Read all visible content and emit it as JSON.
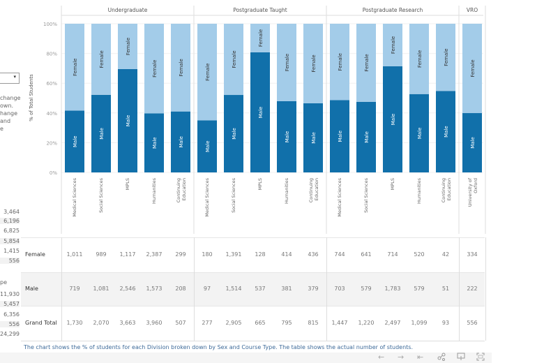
{
  "left_panel": {
    "dropdown_arrow": "▾",
    "text_fragments": [
      "change",
      "own.",
      "hange",
      "and",
      "e"
    ],
    "numbers_top": [
      "3,464",
      "6,196",
      "6,825",
      "5,854",
      "1,415",
      "556"
    ],
    "section_label": "pe",
    "numbers_bottom": [
      "11,930",
      "5,457",
      "6,356",
      "556",
      "24,299"
    ]
  },
  "chart_data": {
    "type": "bar",
    "stacked": true,
    "ylabel": "% of Total Students",
    "ylim": [
      0,
      100
    ],
    "yticks": [
      "0%",
      "20%",
      "40%",
      "60%",
      "80%",
      "100%"
    ],
    "groups": [
      {
        "name": "Undergraduate",
        "categories": [
          "Medical Sciences",
          "Social Sciences",
          "MPLS",
          "Humanities",
          "Continuing Education"
        ]
      },
      {
        "name": "Postgraduate Taught",
        "categories": [
          "Medical Sciences",
          "Social Sciences",
          "MPLS",
          "Humanities",
          "Continuing Education"
        ]
      },
      {
        "name": "Postgraduate Research",
        "categories": [
          "Medical Sciences",
          "Social Sciences",
          "MPLS",
          "Humanities",
          "Continuing Education"
        ]
      },
      {
        "name": "VRO",
        "categories": [
          "University of Oxford"
        ]
      }
    ],
    "series": [
      {
        "name": "Male",
        "color": "#1170aa",
        "label_color": "#ffffff",
        "values": [
          41.6,
          52.2,
          69.5,
          39.7,
          41.0,
          35.0,
          52.1,
          80.8,
          47.9,
          46.5,
          48.6,
          47.5,
          71.4,
          52.7,
          54.8,
          39.9
        ]
      },
      {
        "name": "Female",
        "color": "#a3cce9",
        "label_color": "#333333",
        "values": [
          58.4,
          47.8,
          30.5,
          60.3,
          59.0,
          65.0,
          47.9,
          19.2,
          52.1,
          53.5,
          51.4,
          52.5,
          28.6,
          47.3,
          45.2,
          60.1
        ]
      }
    ]
  },
  "table": {
    "rows": [
      {
        "label": "Female",
        "values": [
          "1,011",
          "989",
          "1,117",
          "2,387",
          "299",
          "180",
          "1,391",
          "128",
          "414",
          "436",
          "744",
          "641",
          "714",
          "520",
          "42",
          "334"
        ]
      },
      {
        "label": "Male",
        "values": [
          "719",
          "1,081",
          "2,546",
          "1,573",
          "208",
          "97",
          "1,514",
          "537",
          "381",
          "379",
          "703",
          "579",
          "1,783",
          "579",
          "51",
          "222"
        ]
      },
      {
        "label": "Grand Total",
        "values": [
          "1,730",
          "2,070",
          "3,663",
          "3,960",
          "507",
          "277",
          "2,905",
          "665",
          "795",
          "815",
          "1,447",
          "1,220",
          "2,497",
          "1,099",
          "93",
          "556"
        ]
      }
    ]
  },
  "caption": "The chart shows the % of students for each Division broken down by Sex and Course Type. The table shows the actual number of students.",
  "toolbar": {
    "undo": "←",
    "redo": "→",
    "revert": "⇤",
    "share": "share-icon",
    "download": "download-icon",
    "fullscreen": "fullscreen-icon"
  }
}
